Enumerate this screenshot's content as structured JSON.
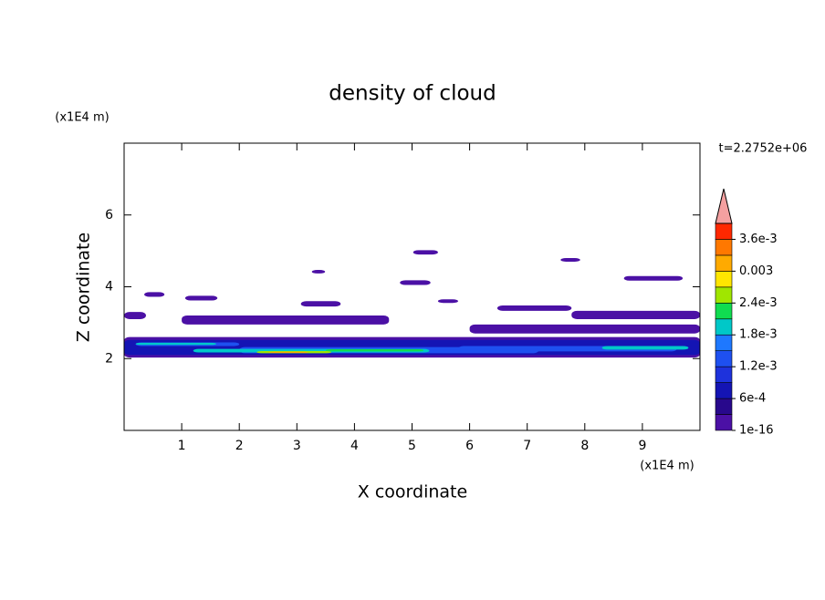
{
  "chart_data": {
    "type": "contour",
    "title": "density of cloud",
    "xlabel": "X coordinate",
    "ylabel": "Z coordinate",
    "xunit": "(x1E4 m)",
    "yunit": "(x1E4 m)",
    "time_label": "t=2.2752e+06",
    "xlim": [
      0,
      10
    ],
    "ylim": [
      0,
      8
    ],
    "xticks": [
      1,
      2,
      3,
      4,
      5,
      6,
      7,
      8,
      9
    ],
    "yticks": [
      2,
      4,
      6
    ],
    "colorbar": {
      "levels": [
        1e-16,
        0.0003,
        0.0006,
        0.0009,
        0.0012,
        0.0015,
        0.0018,
        0.0021,
        0.0024,
        0.0027,
        0.003,
        0.0033,
        0.0036,
        0.0039
      ],
      "colors": [
        "#4b10a5",
        "#28088c",
        "#1414b4",
        "#1e32dc",
        "#1e50f0",
        "#1e78ff",
        "#00c8c8",
        "#10dc50",
        "#a0e600",
        "#ffe600",
        "#ffaa00",
        "#ff7800",
        "#ff2800"
      ],
      "extend_color": "#f4a0a0",
      "ticks": [
        1e-16,
        {
          "value": 0.0006,
          "label": "6e-4"
        },
        {
          "value": 0.0012,
          "label": "1.2e-3"
        },
        {
          "value": 0.0018,
          "label": "1.8e-3"
        },
        {
          "value": 0.0024,
          "label": "2.4e-3"
        },
        0.003,
        {
          "value": 0.0036,
          "label": "3.6e-3"
        }
      ]
    },
    "patches": [
      {
        "x": [
          0.35,
          0.7
        ],
        "z": [
          3.72,
          3.85
        ],
        "value": 0.0002
      },
      {
        "x": [
          1.06,
          1.62
        ],
        "z": [
          3.62,
          3.75
        ],
        "value": 0.0002
      },
      {
        "x": [
          3.26,
          3.49
        ],
        "z": [
          4.37,
          4.47
        ],
        "value": 0.0002
      },
      {
        "x": [
          5.02,
          5.45
        ],
        "z": [
          4.9,
          5.02
        ],
        "value": 0.0002
      },
      {
        "x": [
          4.79,
          5.32
        ],
        "z": [
          4.05,
          4.18
        ],
        "value": 0.0002
      },
      {
        "x": [
          5.45,
          5.8
        ],
        "z": [
          3.55,
          3.65
        ],
        "value": 0.0002
      },
      {
        "x": [
          7.58,
          7.92
        ],
        "z": [
          4.7,
          4.8
        ],
        "value": 0.0002
      },
      {
        "x": [
          8.68,
          9.7
        ],
        "z": [
          4.17,
          4.3
        ],
        "value": 0.0002
      },
      {
        "x": [
          3.07,
          3.76
        ],
        "z": [
          3.45,
          3.6
        ],
        "value": 0.0002
      },
      {
        "x": [
          0,
          0.38
        ],
        "z": [
          3.1,
          3.3
        ],
        "value": 0.0002
      },
      {
        "x": [
          1.0,
          4.6
        ],
        "z": [
          2.95,
          3.2
        ],
        "value": 0.0002
      },
      {
        "x": [
          6.48,
          7.77
        ],
        "z": [
          3.33,
          3.48
        ],
        "value": 0.0002
      },
      {
        "x": [
          7.77,
          10
        ],
        "z": [
          3.1,
          3.33
        ],
        "value": 0.0002
      },
      {
        "x": [
          6.0,
          10
        ],
        "z": [
          2.7,
          2.95
        ],
        "value": 0.0002
      },
      {
        "x": [
          0,
          10
        ],
        "z": [
          2.03,
          2.6
        ],
        "value": 0.0002
      },
      {
        "x": [
          0,
          10
        ],
        "z": [
          2.1,
          2.52
        ],
        "value": 0.0008
      },
      {
        "x": [
          0.2,
          2.0
        ],
        "z": [
          2.35,
          2.45
        ],
        "value": 0.0013
      },
      {
        "x": [
          5.8,
          9.6
        ],
        "z": [
          2.2,
          2.35
        ],
        "value": 0.0013
      },
      {
        "x": [
          2.0,
          7.2
        ],
        "z": [
          2.15,
          2.32
        ],
        "value": 0.0013
      },
      {
        "x": [
          1.2,
          5.3
        ],
        "z": [
          2.17,
          2.27
        ],
        "value": 0.0019
      },
      {
        "x": [
          8.3,
          9.8
        ],
        "z": [
          2.25,
          2.35
        ],
        "value": 0.0019
      },
      {
        "x": [
          0.2,
          1.6
        ],
        "z": [
          2.38,
          2.44
        ],
        "value": 0.0019
      },
      {
        "x": [
          3.5,
          5.2
        ],
        "z": [
          2.2,
          2.26
        ],
        "value": 0.0023
      },
      {
        "x": [
          2.3,
          3.6
        ],
        "z": [
          2.15,
          2.21
        ],
        "value": 0.0026
      },
      {
        "x": [
          2.5,
          3.2
        ],
        "z": [
          2.16,
          2.19
        ],
        "value": 0.0032
      }
    ]
  }
}
